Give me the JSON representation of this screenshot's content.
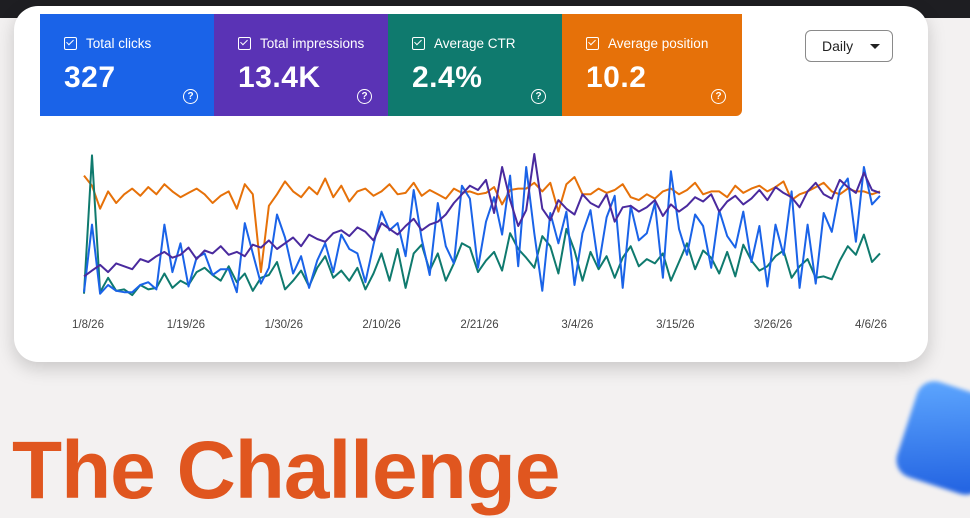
{
  "metrics": [
    {
      "label": "Total clicks",
      "value": "327",
      "color": "#1a63e8"
    },
    {
      "label": "Total impressions",
      "value": "13.4K",
      "color": "#5a33b5"
    },
    {
      "label": "Average CTR",
      "value": "2.4%",
      "color": "#0f7a6e"
    },
    {
      "label": "Average position",
      "value": "10.2",
      "color": "#e67109"
    }
  ],
  "help_glyph": "?",
  "range_select": {
    "value": "Daily"
  },
  "chart_data": {
    "type": "line",
    "x_tick_labels": [
      "1/8/26",
      "1/19/26",
      "1/30/26",
      "2/10/26",
      "2/21/26",
      "3/4/26",
      "3/15/26",
      "3/26/26",
      "4/6/26"
    ],
    "y_scale": [
      0,
      100
    ],
    "series": [
      {
        "color": "#e67109",
        "values": [
          85,
          78,
          62,
          74,
          66,
          72,
          76,
          71,
          77,
          72,
          79,
          74,
          70,
          73,
          76,
          72,
          66,
          71,
          74,
          62,
          79,
          72,
          18,
          64,
          72,
          81,
          74,
          70,
          77,
          72,
          83,
          70,
          78,
          67,
          74,
          76,
          71,
          74,
          79,
          72,
          73,
          80,
          71,
          75,
          72,
          69,
          76,
          73,
          74,
          72,
          73,
          77,
          65,
          75,
          76,
          76,
          80,
          74,
          80,
          60,
          79,
          84,
          72,
          72,
          76,
          73,
          75,
          79,
          70,
          68,
          72,
          69,
          74,
          76,
          72,
          75,
          80,
          72,
          74,
          74,
          70,
          78,
          73,
          76,
          78,
          74,
          77,
          81,
          68,
          72,
          74,
          77,
          80,
          74,
          72,
          76,
          74,
          74,
          72,
          74
        ]
      },
      {
        "color": "#0f7a6e",
        "values": [
          3,
          99,
          4,
          14,
          5,
          6,
          2,
          9,
          6,
          7,
          17,
          7,
          12,
          9,
          18,
          21,
          16,
          12,
          22,
          11,
          17,
          5,
          14,
          16,
          25,
          6,
          12,
          19,
          8,
          21,
          29,
          14,
          19,
          12,
          21,
          6,
          17,
          31,
          12,
          34,
          7,
          31,
          37,
          19,
          31,
          12,
          24,
          38,
          35,
          18,
          26,
          32,
          19,
          45,
          34,
          28,
          21,
          43,
          36,
          17,
          48,
          33,
          12,
          32,
          20,
          29,
          14,
          28,
          36,
          22,
          27,
          24,
          31,
          12,
          25,
          38,
          20,
          33,
          28,
          17,
          32,
          15,
          37,
          26,
          19,
          22,
          29,
          33,
          14,
          22,
          27,
          14,
          15,
          13,
          26,
          36,
          30,
          44,
          25,
          31
        ]
      },
      {
        "color": "#1a63e8",
        "values": [
          4,
          51,
          3,
          9,
          5,
          4,
          4,
          9,
          11,
          6,
          51,
          18,
          38,
          8,
          28,
          31,
          16,
          20,
          20,
          4,
          52,
          31,
          10,
          21,
          58,
          42,
          17,
          29,
          7,
          26,
          38,
          18,
          44,
          34,
          31,
          11,
          37,
          60,
          47,
          52,
          29,
          75,
          41,
          16,
          66,
          36,
          24,
          78,
          69,
          21,
          53,
          70,
          44,
          85,
          22,
          91,
          45,
          5,
          59,
          38,
          60,
          9,
          45,
          61,
          22,
          56,
          71,
          7,
          64,
          40,
          45,
          66,
          14,
          88,
          48,
          30,
          58,
          50,
          21,
          61,
          43,
          35,
          60,
          25,
          50,
          8,
          51,
          30,
          74,
          7,
          51,
          10,
          59,
          46,
          75,
          83,
          39,
          91,
          65,
          71
        ]
      },
      {
        "color": "#4a2a9e",
        "values": [
          15,
          19,
          23,
          18,
          24,
          22,
          20,
          27,
          25,
          29,
          32,
          28,
          30,
          35,
          27,
          33,
          31,
          36,
          30,
          32,
          29,
          37,
          35,
          40,
          34,
          38,
          42,
          36,
          44,
          41,
          39,
          45,
          47,
          43,
          49,
          46,
          40,
          52,
          48,
          44,
          50,
          55,
          47,
          51,
          53,
          58,
          66,
          72,
          78,
          75,
          82,
          59,
          91,
          68,
          50,
          61,
          100,
          62,
          54,
          68,
          62,
          58,
          72,
          66,
          63,
          72,
          53,
          63,
          64,
          60,
          63,
          68,
          57,
          65,
          60,
          64,
          70,
          67,
          72,
          60,
          67,
          71,
          65,
          69,
          75,
          68,
          77,
          73,
          70,
          63,
          74,
          80,
          72,
          69,
          82,
          77,
          73,
          87,
          75,
          73
        ]
      }
    ]
  },
  "headline": "The Challenge"
}
